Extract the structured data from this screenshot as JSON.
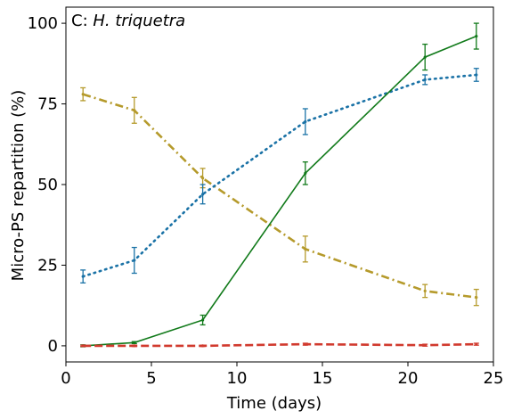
{
  "chart_data": {
    "type": "line",
    "panel_label": "C: ",
    "panel_species": "H. triquetra",
    "xlabel": "Time (days)",
    "ylabel": "Micro-PS repartition (%)",
    "xlim": [
      0,
      25
    ],
    "ylim": [
      -5,
      105
    ],
    "xticks": [
      0,
      5,
      10,
      15,
      20,
      25
    ],
    "yticks": [
      0,
      25,
      50,
      75,
      100
    ],
    "grid": false,
    "legend": "none",
    "series": [
      {
        "color": "#b59a2b",
        "style": "dashdot",
        "x": [
          1,
          4,
          8,
          14,
          21,
          24
        ],
        "y": [
          78,
          73,
          52,
          30,
          17,
          15
        ],
        "err": [
          2,
          4,
          3,
          4,
          2,
          2.5
        ]
      },
      {
        "color": "#1a72a6",
        "style": "dotted",
        "x": [
          1,
          4,
          8,
          14,
          21,
          24
        ],
        "y": [
          21.5,
          26.5,
          47,
          69.5,
          82.5,
          84
        ],
        "err": [
          2,
          4,
          3,
          4,
          1.5,
          2
        ]
      },
      {
        "color": "#117a1a",
        "style": "solid",
        "x": [
          1,
          4,
          8,
          14,
          21,
          24
        ],
        "y": [
          0,
          1,
          8,
          53.5,
          89.5,
          96
        ],
        "err": [
          0.3,
          0.3,
          1.5,
          3.5,
          4,
          4
        ]
      },
      {
        "color": "#d13a2e",
        "style": "dashed",
        "x": [
          1,
          4,
          8,
          14,
          21,
          24
        ],
        "y": [
          0,
          0,
          0,
          0.5,
          0.2,
          0.5
        ],
        "err": [
          0.2,
          0.2,
          0.2,
          0.3,
          0.3,
          0.3
        ]
      }
    ]
  }
}
